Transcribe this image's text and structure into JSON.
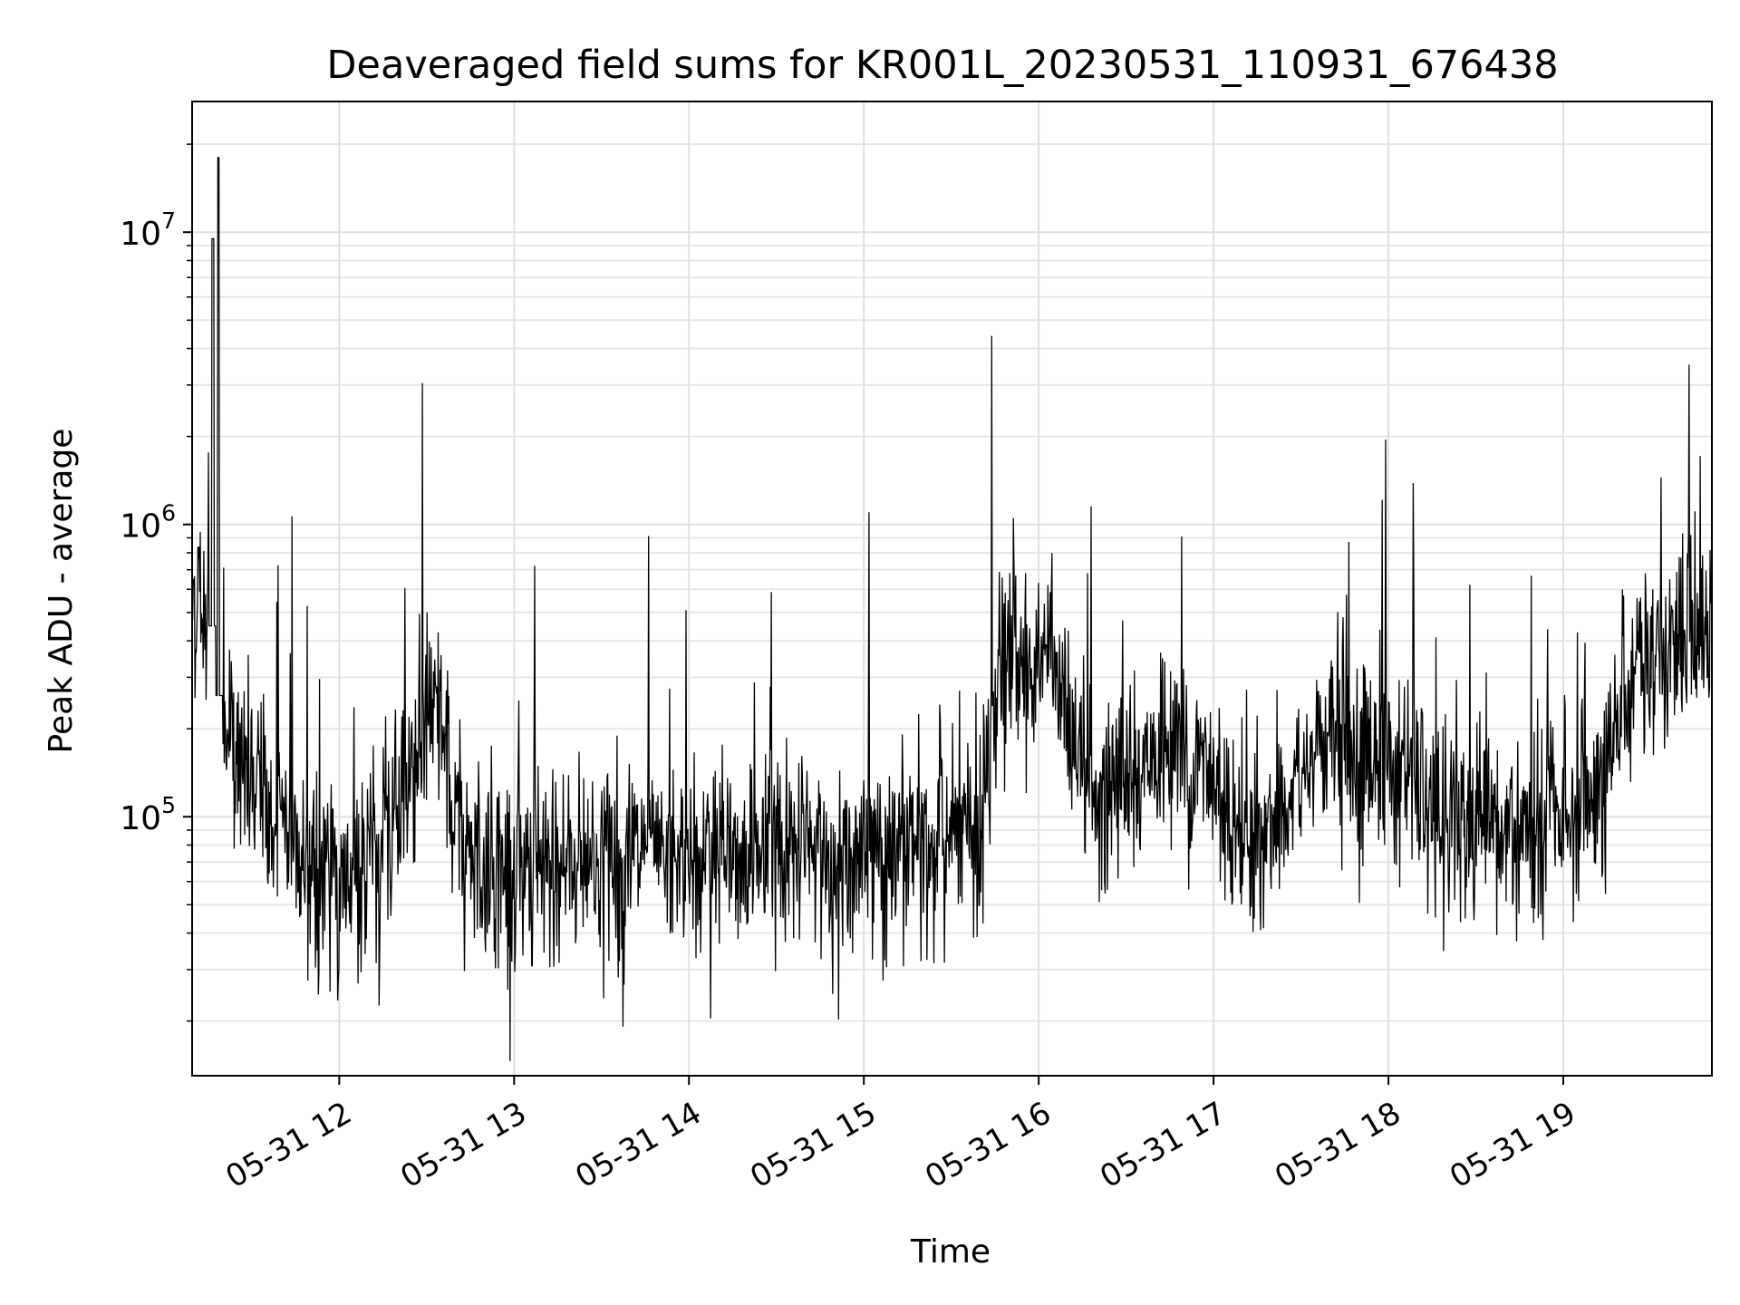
{
  "chart_data": {
    "type": "line",
    "title": "Deaveraged field sums for KR001L_20230531_110931_676438",
    "xlabel": "Time",
    "ylabel": "Peak ADU - average",
    "yscale": "log",
    "xlim": [
      "2023-05-31T11:09:31",
      "2023-05-31T19:51:00"
    ],
    "ylim": [
      13000,
      28000000
    ],
    "grid": true,
    "grid_minor_y": true,
    "line_color": "#000000",
    "xticks": [
      {
        "value": "2023-05-31T12:00:00",
        "label": "05-31 12"
      },
      {
        "value": "2023-05-31T13:00:00",
        "label": "05-31 13"
      },
      {
        "value": "2023-05-31T14:00:00",
        "label": "05-31 14"
      },
      {
        "value": "2023-05-31T15:00:00",
        "label": "05-31 15"
      },
      {
        "value": "2023-05-31T16:00:00",
        "label": "05-31 16"
      },
      {
        "value": "2023-05-31T17:00:00",
        "label": "05-31 17"
      },
      {
        "value": "2023-05-31T18:00:00",
        "label": "05-31 18"
      },
      {
        "value": "2023-05-31T19:00:00",
        "label": "05-31 19"
      }
    ],
    "yticks": [
      {
        "value": 100000,
        "base": "10",
        "exp": "5"
      },
      {
        "value": 1000000,
        "base": "10",
        "exp": "6"
      },
      {
        "value": 10000000,
        "base": "10",
        "exp": "7"
      }
    ],
    "series": [
      {
        "x": [
          "2023-05-31T11:09:31",
          "2023-05-31T11:12:00",
          "2023-05-31T11:15:00",
          "2023-05-31T11:16:40",
          "2023-05-31T11:17:00",
          "2023-05-31T11:18:30",
          "2023-05-31T11:19:30",
          "2023-05-31T11:22:00",
          "2023-05-31T11:25:00",
          "2023-05-31T11:30:00",
          "2023-05-31T11:40:00",
          "2023-05-31T11:50:00",
          "2023-05-31T11:55:00",
          "2023-05-31T12:00:00",
          "2023-05-31T12:10:00",
          "2023-05-31T12:20:00",
          "2023-05-31T12:30:00",
          "2023-05-31T12:35:00",
          "2023-05-31T12:40:00",
          "2023-05-31T12:50:00",
          "2023-05-31T13:00:00",
          "2023-05-31T13:15:00",
          "2023-05-31T13:30:00",
          "2023-05-31T14:00:00",
          "2023-05-31T14:30:00",
          "2023-05-31T15:00:00",
          "2023-05-31T15:15:00",
          "2023-05-31T15:30:00",
          "2023-05-31T15:40:00",
          "2023-05-31T15:45:00",
          "2023-05-31T15:55:00",
          "2023-05-31T16:05:00",
          "2023-05-31T16:10:00",
          "2023-05-31T16:20:00",
          "2023-05-31T16:30:00",
          "2023-05-31T16:45:00",
          "2023-05-31T16:55:00",
          "2023-05-31T17:05:00",
          "2023-05-31T17:15:00",
          "2023-05-31T17:25:00",
          "2023-05-31T17:40:00",
          "2023-05-31T17:55:00",
          "2023-05-31T18:05:00",
          "2023-05-31T18:20:00",
          "2023-05-31T18:35:00",
          "2023-05-31T18:50:00",
          "2023-05-31T19:10:00",
          "2023-05-31T19:15:00",
          "2023-05-31T19:20:00",
          "2023-05-31T19:30:00",
          "2023-05-31T19:40:00",
          "2023-05-31T19:51:00"
        ],
        "y": [
          550000,
          600000,
          450000,
          9500000,
          450000,
          18000000,
          150000,
          220000,
          150000,
          130000,
          90000,
          70000,
          65000,
          60000,
          75000,
          100000,
          220000,
          200000,
          85000,
          70000,
          65000,
          70000,
          75000,
          72000,
          73000,
          75000,
          80000,
          85000,
          90000,
          300000,
          350000,
          420000,
          150000,
          120000,
          140000,
          170000,
          150000,
          110000,
          80000,
          110000,
          200000,
          150000,
          150000,
          90000,
          85000,
          95000,
          110000,
          120000,
          300000,
          350000,
          400000,
          450000
        ]
      }
    ]
  }
}
